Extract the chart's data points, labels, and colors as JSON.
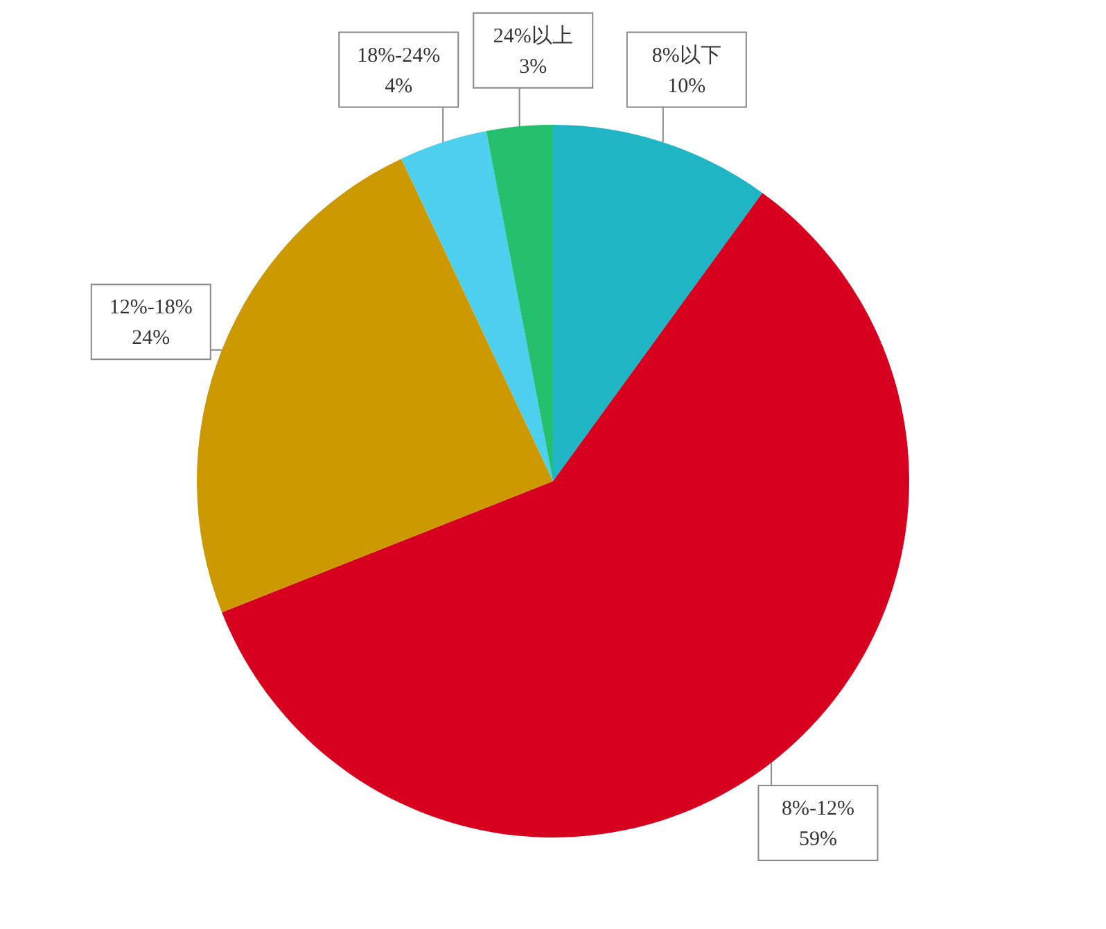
{
  "chart_data": {
    "type": "pie",
    "categories": [
      "8%以下",
      "8%-12%",
      "12%-18%",
      "18%-24%",
      "24%以上"
    ],
    "values": [
      10,
      59,
      24,
      4,
      3
    ],
    "value_labels": [
      "10%",
      "59%",
      "24%",
      "4%",
      "3%"
    ],
    "colors": [
      "#1fb5c4",
      "#d7001e",
      "#cc9900",
      "#4dcfee",
      "#25c06e"
    ],
    "legend": false
  }
}
